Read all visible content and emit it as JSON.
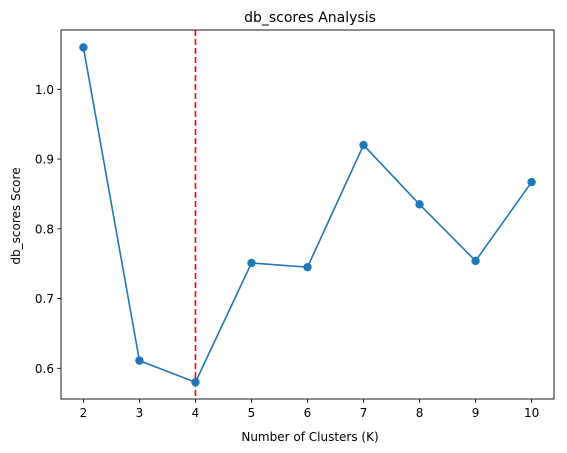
{
  "chart_data": {
    "type": "line",
    "title": "db_scores Analysis",
    "xlabel": "Number of Clusters (K)",
    "ylabel": "db_scores Score",
    "x": [
      2,
      3,
      4,
      5,
      6,
      7,
      8,
      9,
      10
    ],
    "series": [
      {
        "values": [
          1.06,
          0.611,
          0.58,
          0.751,
          0.745,
          0.92,
          0.835,
          0.754,
          0.867
        ],
        "color": "#1f77b4",
        "marker": "circle"
      }
    ],
    "xlim": [
      1.6,
      10.4
    ],
    "ylim": [
      0.556,
      1.085
    ],
    "xticks": [
      2,
      3,
      4,
      5,
      6,
      7,
      8,
      9,
      10
    ],
    "yticks": [
      0.6,
      0.7,
      0.8,
      0.9,
      1.0
    ],
    "ytick_labels": [
      "0.6",
      "0.7",
      "0.8",
      "0.9",
      "1.0"
    ],
    "vline": {
      "x": 4,
      "color": "#ff0000",
      "style": "dashed"
    },
    "grid": false,
    "legend": "none"
  }
}
